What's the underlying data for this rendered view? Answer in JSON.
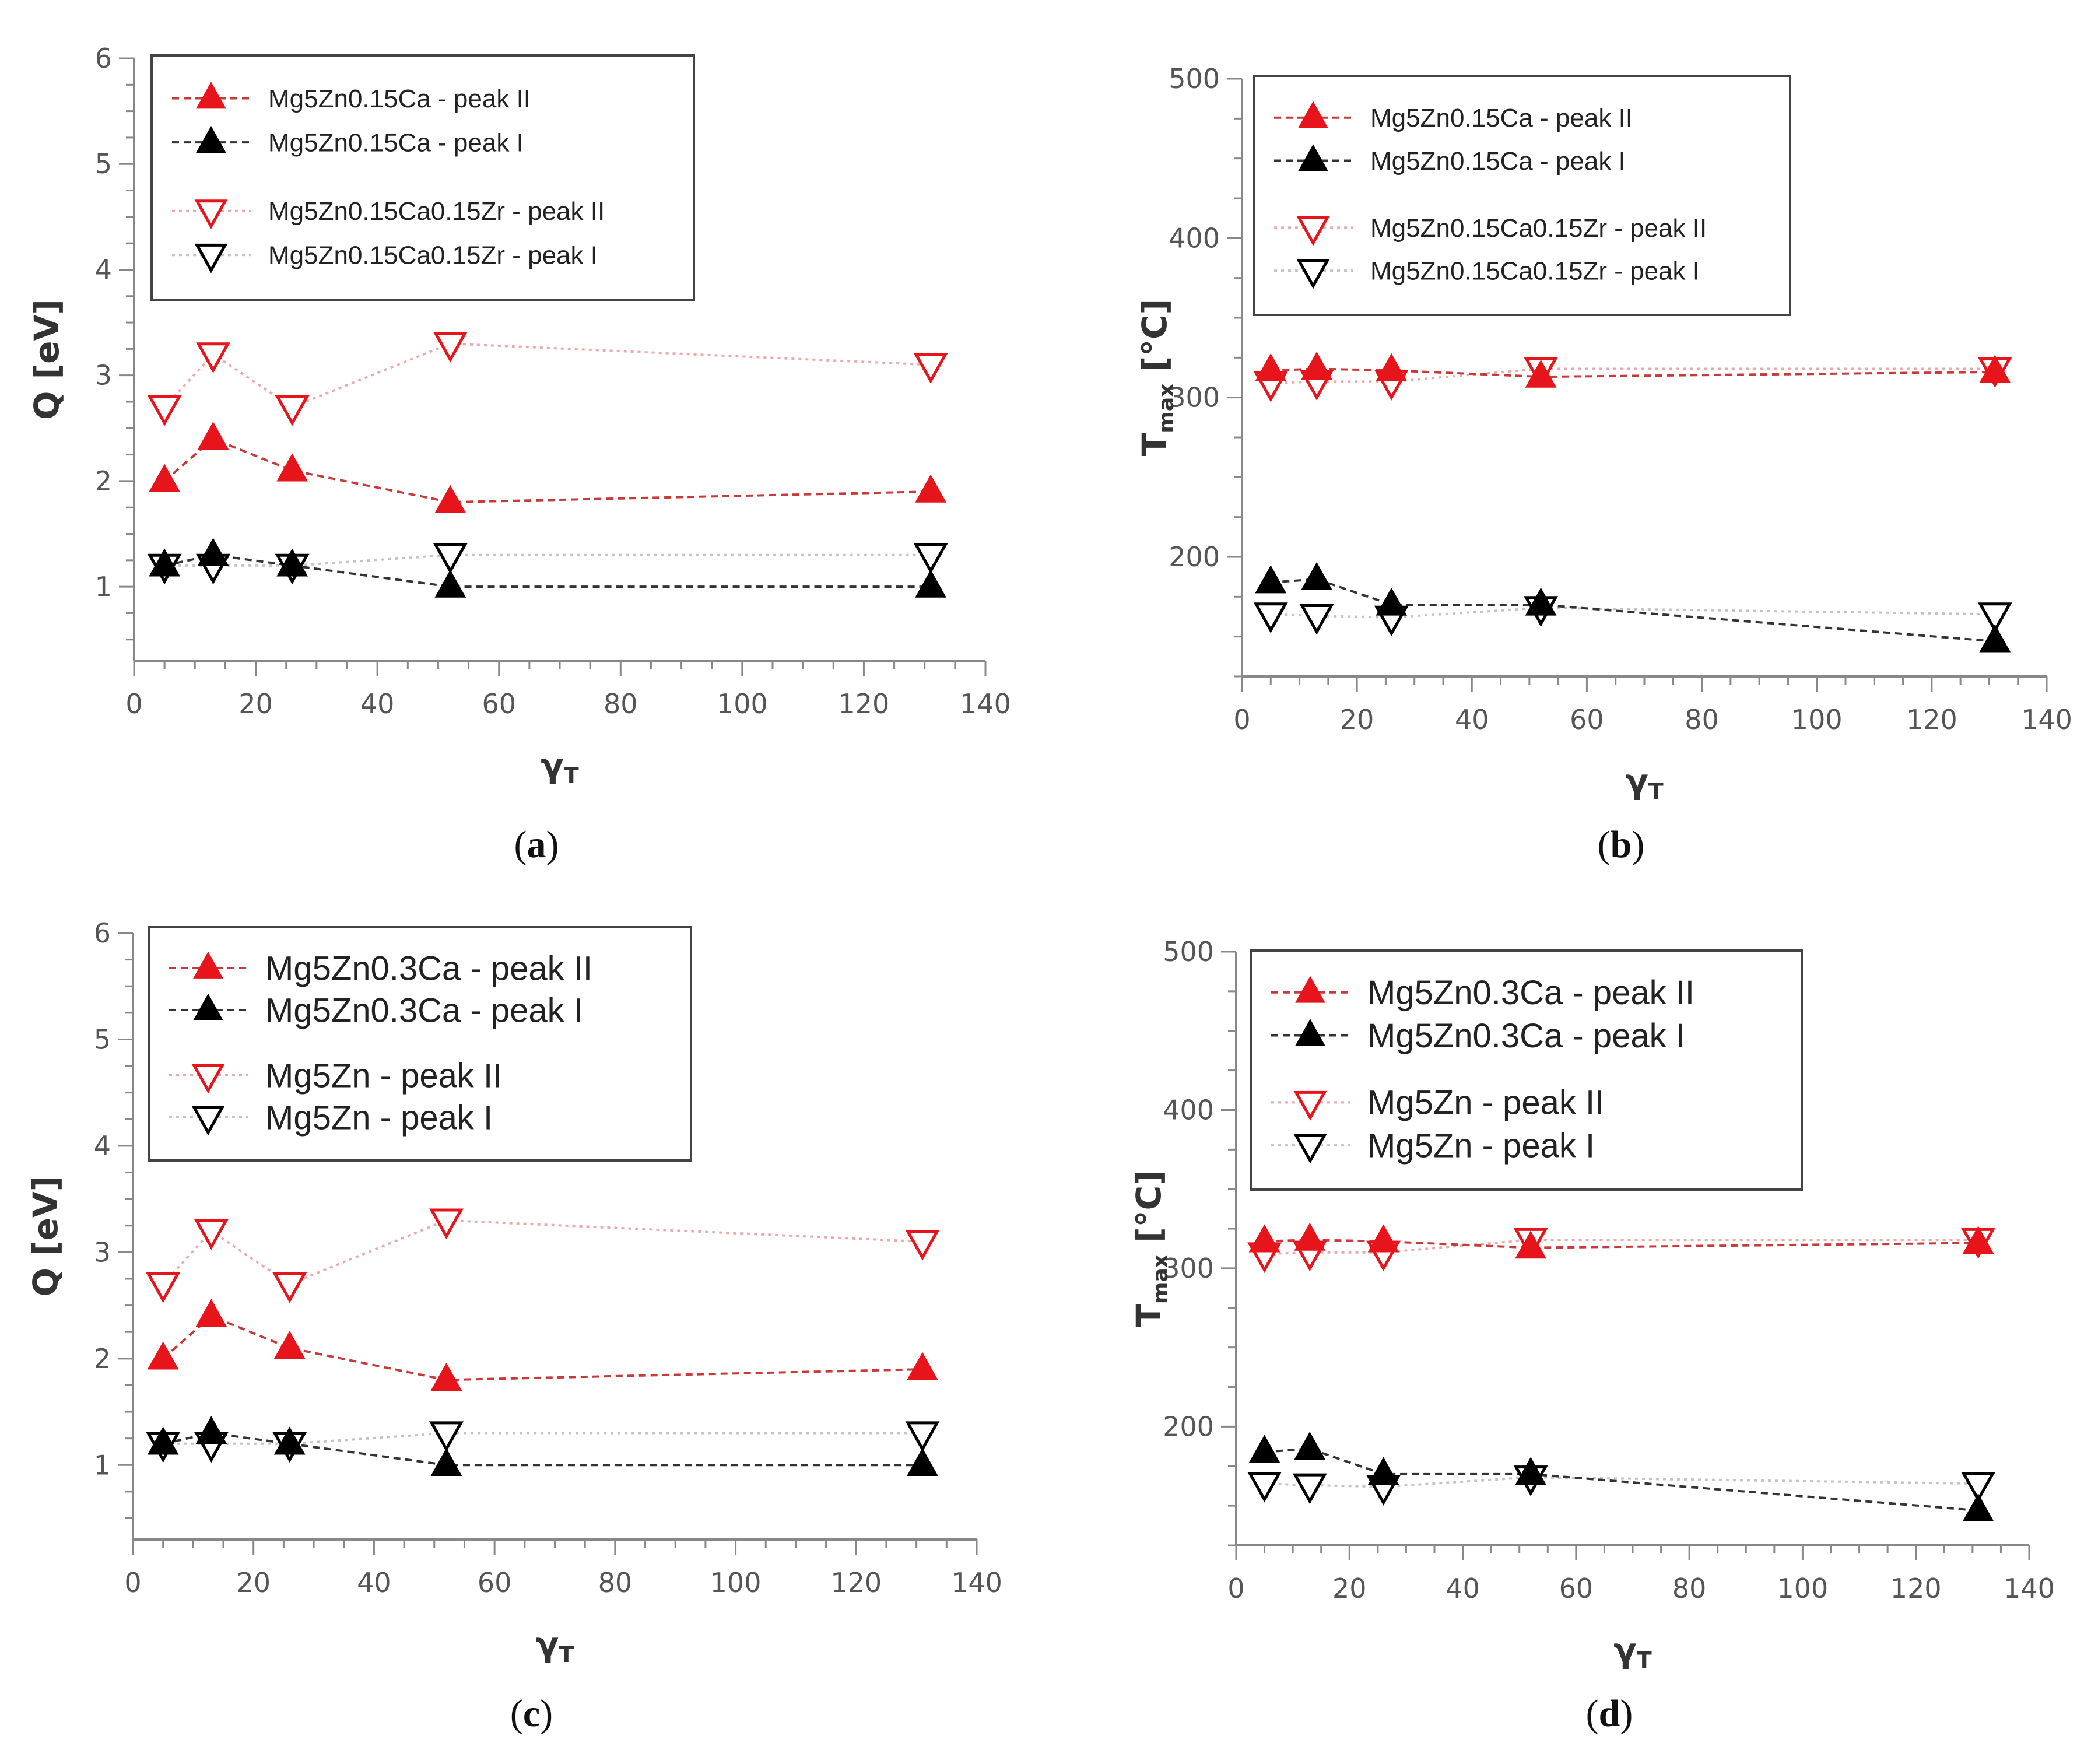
{
  "chart_data": [
    {
      "panel": "a",
      "caption": "a",
      "type": "line",
      "xlabel": "γ",
      "xlabel_sub": "T",
      "ylabel": "Q [eV]",
      "ylabel_sub": "",
      "xlim": [
        0,
        140
      ],
      "ylim": [
        0.3,
        6
      ],
      "xticks": [
        0,
        20,
        40,
        60,
        80,
        100,
        120,
        140
      ],
      "yticks": [
        1,
        2,
        3,
        4,
        5,
        6
      ],
      "x": [
        5,
        13,
        26,
        52,
        131
      ],
      "series": [
        {
          "name": "Mg5Zn0.15Ca - peak II",
          "values": [
            2.0,
            2.4,
            2.1,
            1.8,
            1.9
          ],
          "marker": "triangle-up",
          "filled": true,
          "color": "#e8141c",
          "line_color": "#c83a3a"
        },
        {
          "name": "Mg5Zn0.15Ca - peak I",
          "values": [
            1.2,
            1.3,
            1.2,
            1.0,
            1.0
          ],
          "marker": "triangle-up",
          "filled": true,
          "color": "#000000",
          "line_color": "#333333"
        },
        {
          "name": "Mg5Zn0.15Ca0.15Zr - peak II",
          "values": [
            2.7,
            3.2,
            2.7,
            3.3,
            3.1
          ],
          "marker": "triangle-down",
          "filled": false,
          "color": "#e8141c",
          "line_color": "#eaaaaa"
        },
        {
          "name": "Mg5Zn0.15Ca0.15Zr - peak I",
          "values": [
            1.2,
            1.2,
            1.2,
            1.3,
            1.3
          ],
          "marker": "triangle-down",
          "filled": false,
          "color": "#000000",
          "line_color": "#c4c4c4"
        }
      ]
    },
    {
      "panel": "b",
      "caption": "b",
      "type": "line",
      "xlabel": "γ",
      "xlabel_sub": "T",
      "ylabel": "T",
      "ylabel_sub": "max",
      "ylabel_unit": " [°C]",
      "xlim": [
        0,
        140
      ],
      "ylim": [
        125,
        500
      ],
      "xticks": [
        0,
        20,
        40,
        60,
        80,
        100,
        120,
        140
      ],
      "yticks": [
        200,
        300,
        400,
        500
      ],
      "x": [
        5,
        13,
        26,
        52,
        131
      ],
      "series": [
        {
          "name": "Mg5Zn0.15Ca - peak II",
          "values": [
            317,
            318,
            317,
            313,
            316
          ],
          "marker": "triangle-up",
          "filled": true,
          "color": "#e8141c",
          "line_color": "#c83a3a"
        },
        {
          "name": "Mg5Zn0.15Ca - peak I",
          "values": [
            184,
            186,
            170,
            170,
            147
          ],
          "marker": "triangle-up",
          "filled": true,
          "color": "#000000",
          "line_color": "#333333"
        },
        {
          "name": "Mg5Zn0.15Ca0.15Zr - peak II",
          "values": [
            309,
            310,
            310,
            318,
            318
          ],
          "marker": "triangle-down",
          "filled": false,
          "color": "#e8141c",
          "line_color": "#eaaaaa"
        },
        {
          "name": "Mg5Zn0.15Ca0.15Zr - peak I",
          "values": [
            164,
            163,
            162,
            168,
            164
          ],
          "marker": "triangle-down",
          "filled": false,
          "color": "#000000",
          "line_color": "#c4c4c4"
        }
      ]
    },
    {
      "panel": "c",
      "caption": "c",
      "type": "line",
      "xlabel": "γ",
      "xlabel_sub": "T",
      "ylabel": "Q [eV]",
      "ylabel_sub": "",
      "xlim": [
        0,
        140
      ],
      "ylim": [
        0.3,
        6
      ],
      "xticks": [
        0,
        20,
        40,
        60,
        80,
        100,
        120,
        140
      ],
      "yticks": [
        1,
        2,
        3,
        4,
        5,
        6
      ],
      "x": [
        5,
        13,
        26,
        52,
        131
      ],
      "series": [
        {
          "name": "Mg5Zn0.3Ca - peak II",
          "values": [
            2.0,
            2.4,
            2.1,
            1.8,
            1.9
          ],
          "marker": "triangle-up",
          "filled": true,
          "color": "#e8141c",
          "line_color": "#c83a3a"
        },
        {
          "name": "Mg5Zn0.3Ca - peak I",
          "values": [
            1.2,
            1.3,
            1.2,
            1.0,
            1.0
          ],
          "marker": "triangle-up",
          "filled": true,
          "color": "#000000",
          "line_color": "#333333"
        },
        {
          "name": "Mg5Zn - peak II",
          "values": [
            2.7,
            3.2,
            2.7,
            3.3,
            3.1
          ],
          "marker": "triangle-down",
          "filled": false,
          "color": "#e8141c",
          "line_color": "#eaaaaa"
        },
        {
          "name": "Mg5Zn - peak I",
          "values": [
            1.2,
            1.2,
            1.2,
            1.3,
            1.3
          ],
          "marker": "triangle-down",
          "filled": false,
          "color": "#000000",
          "line_color": "#c4c4c4"
        }
      ]
    },
    {
      "panel": "d",
      "caption": "d",
      "type": "line",
      "xlabel": "γ",
      "xlabel_sub": "T",
      "ylabel": "T",
      "ylabel_sub": "max",
      "ylabel_unit": " [°C]",
      "xlim": [
        0,
        140
      ],
      "ylim": [
        125,
        500
      ],
      "xticks": [
        0,
        20,
        40,
        60,
        80,
        100,
        120,
        140
      ],
      "yticks": [
        200,
        300,
        400,
        500
      ],
      "x": [
        5,
        13,
        26,
        52,
        131
      ],
      "series": [
        {
          "name": "Mg5Zn0.3Ca - peak II",
          "values": [
            317,
            318,
            317,
            313,
            316
          ],
          "marker": "triangle-up",
          "filled": true,
          "color": "#e8141c",
          "line_color": "#c83a3a"
        },
        {
          "name": "Mg5Zn0.3Ca - peak I",
          "values": [
            184,
            186,
            170,
            170,
            147
          ],
          "marker": "triangle-up",
          "filled": true,
          "color": "#000000",
          "line_color": "#333333"
        },
        {
          "name": "Mg5Zn - peak II",
          "values": [
            309,
            310,
            310,
            318,
            318
          ],
          "marker": "triangle-down",
          "filled": false,
          "color": "#e8141c",
          "line_color": "#eaaaaa"
        },
        {
          "name": "Mg5Zn - peak I",
          "values": [
            164,
            163,
            162,
            168,
            164
          ],
          "marker": "triangle-down",
          "filled": false,
          "color": "#000000",
          "line_color": "#c4c4c4"
        }
      ]
    }
  ]
}
